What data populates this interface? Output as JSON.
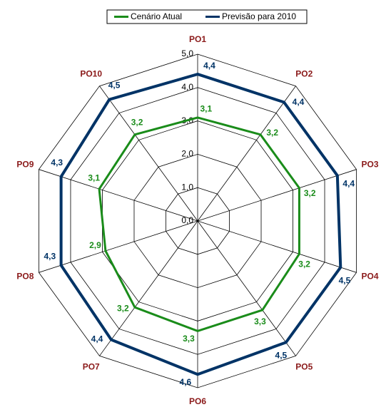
{
  "chart_data": {
    "type": "radar",
    "categories": [
      "PO1",
      "PO2",
      "PO3",
      "PO4",
      "PO5",
      "PO6",
      "PO7",
      "PO8",
      "PO9",
      "PO10"
    ],
    "series": [
      {
        "name": "Cenário Atual",
        "color": "#1a8c1a",
        "values": [
          3.1,
          3.2,
          3.2,
          3.2,
          3.3,
          3.3,
          3.2,
          2.9,
          3.1,
          3.2
        ],
        "value_labels": [
          "3,1",
          "3,2",
          "3,2",
          "3,2",
          "3,3",
          "3,3",
          "3,2",
          "2,9",
          "3,1",
          "3,2"
        ]
      },
      {
        "name": "Previsão para 2010",
        "color": "#003366",
        "values": [
          4.4,
          4.4,
          4.4,
          4.5,
          4.5,
          4.6,
          4.4,
          4.3,
          4.3,
          4.5
        ],
        "value_labels": [
          "4,4",
          "4,4",
          "4,4",
          "4,5",
          "4,5",
          "4,6",
          "4,4",
          "4,3",
          "4,3",
          "4,5"
        ]
      }
    ],
    "ylim": [
      0,
      5
    ],
    "yticks": [
      {
        "value": 0,
        "label": "0,0"
      },
      {
        "value": 1,
        "label": "1,0"
      },
      {
        "value": 2,
        "label": "2,0"
      },
      {
        "value": 3,
        "label": "3,0"
      },
      {
        "value": 4,
        "label": "4,0"
      },
      {
        "value": 5,
        "label": "5,0"
      }
    ],
    "category_color": "#8b1a1a",
    "legend": "top"
  }
}
